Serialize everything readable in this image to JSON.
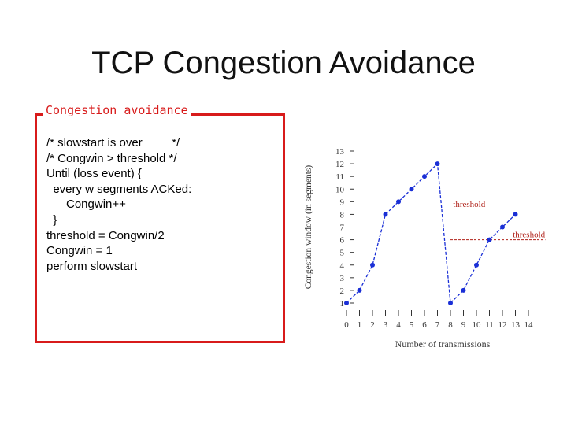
{
  "slide": {
    "title": "TCP Congestion Avoidance"
  },
  "box": {
    "label": "Congestion avoidance",
    "lines": [
      "/* slowstart is over         */",
      "/* Congwin > threshold */",
      "Until (loss event) {",
      "  every w segments ACKed:",
      "      Congwin++",
      "  }",
      "threshold = Congwin/2",
      "Congwin = 1",
      "perform slowstart"
    ]
  },
  "chart_data": {
    "type": "line",
    "xlabel": "Number of transmissions",
    "ylabel": "Congestion window (in segments)",
    "x_ticks": [
      "0",
      "1",
      "2",
      "3",
      "4",
      "5",
      "6",
      "7",
      "8",
      "9",
      "10",
      "11",
      "12",
      "13",
      "14"
    ],
    "y_ticks": [
      "1",
      "2",
      "3",
      "4",
      "5",
      "6",
      "7",
      "8",
      "9",
      "10",
      "11",
      "12",
      "13"
    ],
    "xlim": [
      0,
      14
    ],
    "ylim": [
      1,
      13
    ],
    "series": [
      {
        "x": [
          0,
          1,
          2,
          3,
          4,
          5,
          6,
          7,
          8,
          9,
          10,
          11,
          12,
          13
        ],
        "y": [
          1,
          2,
          4,
          8,
          9,
          10,
          11,
          12,
          1,
          2,
          4,
          6,
          7,
          8
        ],
        "color": "#1a2fd6"
      }
    ],
    "annotations": [
      {
        "text": "threshold",
        "x": 8.2,
        "y": 8.6,
        "color": "#b0221a"
      },
      {
        "text": "threshold",
        "x": 12.8,
        "y": 6.2,
        "color": "#b0221a",
        "dashed_from_x": 8,
        "dashed_to_x": 15.3,
        "dashed_y": 6
      }
    ]
  }
}
